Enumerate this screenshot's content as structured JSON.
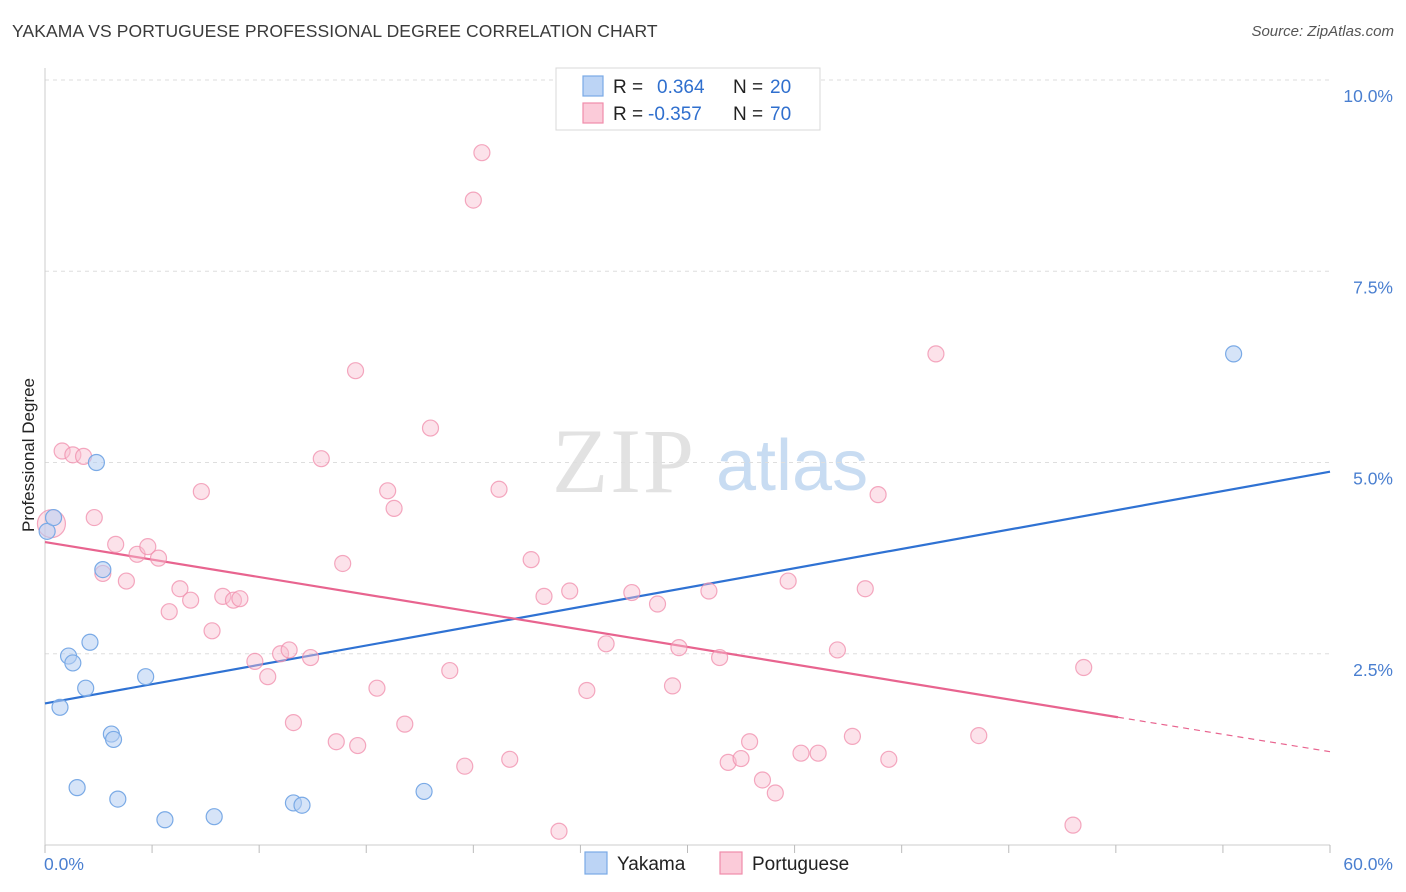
{
  "header": {
    "title": "YAKAMA VS PORTUGUESE PROFESSIONAL DEGREE CORRELATION CHART",
    "source": "Source: ZipAtlas.com"
  },
  "watermark": {
    "zip": "ZIP",
    "atlas": "atlas"
  },
  "legend": {
    "r_label": "R =",
    "n_label": "N =",
    "rows": [
      {
        "name": "Yakama",
        "r": "0.364",
        "n": "20"
      },
      {
        "name": "Portuguese",
        "r": "-0.357",
        "n": "70"
      }
    ]
  },
  "chart_data": {
    "type": "scatter",
    "title": "YAKAMA VS PORTUGUESE PROFESSIONAL DEGREE CORRELATION CHART",
    "xlabel": "",
    "ylabel": "Professional Degree",
    "xlim": [
      0,
      60
    ],
    "ylim": [
      0,
      10
    ],
    "x_tick_labels": [
      "0.0%",
      "60.0%"
    ],
    "y_ticks": [
      2.5,
      5.0,
      7.5,
      10.0
    ],
    "y_tick_labels": [
      "2.5%",
      "5.0%",
      "7.5%",
      "10.0%"
    ],
    "grid": true,
    "colors": {
      "yakama": "#7aaae6",
      "portuguese": "#f08cab",
      "yakama_line": "#2f72d3",
      "portuguese_line": "#e8648f"
    },
    "series": [
      {
        "name": "Yakama",
        "r": 0.364,
        "n": 20,
        "points": [
          [
            0.1,
            4.1
          ],
          [
            0.4,
            4.28
          ],
          [
            0.7,
            1.8
          ],
          [
            1.1,
            2.47
          ],
          [
            1.3,
            2.38
          ],
          [
            1.5,
            0.75
          ],
          [
            1.9,
            2.05
          ],
          [
            2.1,
            2.65
          ],
          [
            2.4,
            5.0
          ],
          [
            2.7,
            3.6
          ],
          [
            3.1,
            1.45
          ],
          [
            3.2,
            1.38
          ],
          [
            3.4,
            0.6
          ],
          [
            4.7,
            2.2
          ],
          [
            5.6,
            0.33
          ],
          [
            7.9,
            0.37
          ],
          [
            11.6,
            0.55
          ],
          [
            12.0,
            0.52
          ],
          [
            17.7,
            0.7
          ],
          [
            55.5,
            6.42
          ]
        ],
        "trend": {
          "x": [
            0,
            60
          ],
          "y": [
            1.85,
            4.88
          ]
        }
      },
      {
        "name": "Portuguese",
        "r": -0.357,
        "n": 70,
        "points": [
          [
            0.3,
            4.2
          ],
          [
            0.8,
            5.15
          ],
          [
            1.3,
            5.1
          ],
          [
            1.8,
            5.08
          ],
          [
            2.3,
            4.28
          ],
          [
            2.7,
            3.55
          ],
          [
            3.3,
            3.93
          ],
          [
            3.8,
            3.45
          ],
          [
            4.3,
            3.8
          ],
          [
            4.8,
            3.9
          ],
          [
            5.3,
            3.75
          ],
          [
            5.8,
            3.05
          ],
          [
            6.3,
            3.35
          ],
          [
            6.8,
            3.2
          ],
          [
            7.3,
            4.62
          ],
          [
            7.8,
            2.8
          ],
          [
            8.3,
            3.25
          ],
          [
            8.8,
            3.2
          ],
          [
            9.1,
            3.22
          ],
          [
            9.8,
            2.4
          ],
          [
            10.4,
            2.2
          ],
          [
            11.0,
            2.5
          ],
          [
            11.4,
            2.55
          ],
          [
            11.6,
            1.6
          ],
          [
            12.4,
            2.45
          ],
          [
            12.9,
            5.05
          ],
          [
            13.6,
            1.35
          ],
          [
            13.9,
            3.68
          ],
          [
            14.5,
            6.2
          ],
          [
            14.6,
            1.3
          ],
          [
            15.5,
            2.05
          ],
          [
            16.0,
            4.63
          ],
          [
            16.3,
            4.4
          ],
          [
            16.8,
            1.58
          ],
          [
            18.0,
            5.45
          ],
          [
            18.9,
            2.28
          ],
          [
            19.6,
            1.03
          ],
          [
            20.0,
            8.43
          ],
          [
            20.4,
            9.05
          ],
          [
            21.2,
            4.65
          ],
          [
            21.7,
            1.12
          ],
          [
            22.7,
            3.73
          ],
          [
            23.3,
            3.25
          ],
          [
            24.0,
            0.18
          ],
          [
            24.5,
            3.32
          ],
          [
            25.3,
            2.02
          ],
          [
            26.2,
            2.63
          ],
          [
            27.4,
            3.3
          ],
          [
            28.6,
            3.15
          ],
          [
            29.3,
            2.08
          ],
          [
            29.6,
            2.58
          ],
          [
            31.0,
            3.32
          ],
          [
            31.5,
            2.45
          ],
          [
            31.9,
            1.08
          ],
          [
            32.5,
            1.13
          ],
          [
            32.9,
            1.35
          ],
          [
            33.5,
            0.85
          ],
          [
            34.1,
            0.68
          ],
          [
            34.7,
            3.45
          ],
          [
            35.3,
            1.2
          ],
          [
            36.1,
            1.2
          ],
          [
            37.0,
            2.55
          ],
          [
            37.7,
            1.42
          ],
          [
            38.3,
            3.35
          ],
          [
            38.9,
            4.58
          ],
          [
            39.4,
            1.12
          ],
          [
            41.6,
            6.42
          ],
          [
            43.6,
            1.43
          ],
          [
            48.0,
            0.26
          ],
          [
            48.5,
            2.32
          ]
        ],
        "trend": {
          "x": [
            0,
            50.1
          ],
          "y": [
            3.96,
            1.67
          ]
        },
        "trend_dashed": {
          "x": [
            50.1,
            60
          ],
          "y": [
            1.67,
            1.22
          ]
        }
      }
    ]
  }
}
